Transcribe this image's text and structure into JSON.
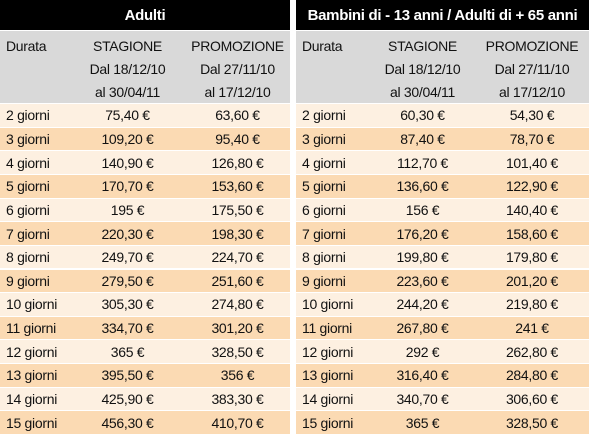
{
  "table": {
    "groups": [
      {
        "title": "Adulti",
        "columns": [
          {
            "lines": [
              "Durata"
            ]
          },
          {
            "lines": [
              "STAGIONE",
              "Dal 18/12/10",
              "al 30/04/11"
            ]
          },
          {
            "lines": [
              "PROMOZIONE",
              "Dal 27/11/10",
              "al 17/12/10"
            ]
          }
        ],
        "rows": [
          [
            "2 giorni",
            "75,40 €",
            "63,60 €"
          ],
          [
            "3 giorni",
            "109,20 €",
            "95,40 €"
          ],
          [
            "4 giorni",
            "140,90 €",
            "126,80 €"
          ],
          [
            "5 giorni",
            "170,70 €",
            "153,60 €"
          ],
          [
            "6 giorni",
            "195 €",
            "175,50 €"
          ],
          [
            "7 giorni",
            "220,30 €",
            "198,30 €"
          ],
          [
            "8 giorni",
            "249,70 €",
            "224,70 €"
          ],
          [
            "9 giorni",
            "279,50 €",
            "251,60 €"
          ],
          [
            "10 giorni",
            "305,30 €",
            "274,80 €"
          ],
          [
            "11 giorni",
            "334,70 €",
            "301,20 €"
          ],
          [
            "12 giorni",
            "365 €",
            "328,50 €"
          ],
          [
            "13 giorni",
            "395,50 €",
            "356 €"
          ],
          [
            "14 giorni",
            "425,90 €",
            "383,30 €"
          ],
          [
            "15 giorni",
            "456,30 €",
            "410,70 €"
          ]
        ]
      },
      {
        "title": "Bambini di - 13 anni / Adulti di + 65 anni",
        "columns": [
          {
            "lines": [
              "Durata"
            ]
          },
          {
            "lines": [
              "STAGIONE",
              "Dal 18/12/10",
              "al 30/04/11"
            ]
          },
          {
            "lines": [
              "PROMOZIONE",
              "Dal 27/11/10",
              "al 17/12/10"
            ]
          }
        ],
        "rows": [
          [
            "2 giorni",
            "60,30 €",
            "54,30 €"
          ],
          [
            "3 giorni",
            "87,40 €",
            "78,70 €"
          ],
          [
            "4 giorni",
            "112,70 €",
            "101,40 €"
          ],
          [
            "5 giorni",
            "136,60 €",
            "122,90 €"
          ],
          [
            "6 giorni",
            "156 €",
            "140,40 €"
          ],
          [
            "7 giorni",
            "176,20 €",
            "158,60 €"
          ],
          [
            "8 giorni",
            "199,80 €",
            "179,80 €"
          ],
          [
            "9 giorni",
            "223,60 €",
            "201,20 €"
          ],
          [
            "10 giorni",
            "244,20 €",
            "219,80 €"
          ],
          [
            "11 giorni",
            "267,80 €",
            "241 €"
          ],
          [
            "12 giorni",
            "292 €",
            "262,80 €"
          ],
          [
            "13 giorni",
            "316,40 €",
            "284,80 €"
          ],
          [
            "14 giorni",
            "340,70 €",
            "306,60 €"
          ],
          [
            "15 giorni",
            "365 €",
            "328,50 €"
          ]
        ]
      }
    ]
  }
}
